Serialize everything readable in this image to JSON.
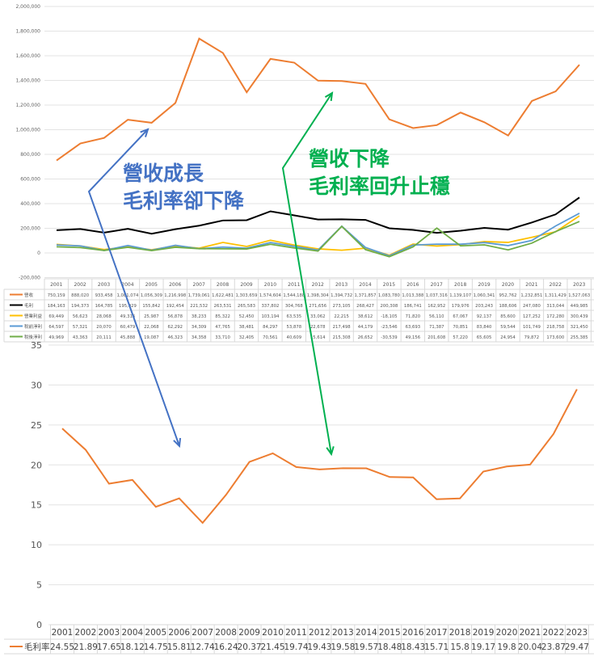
{
  "chart_data": [
    {
      "type": "line",
      "categories": [
        "2001",
        "2002",
        "2003",
        "2004",
        "2005",
        "2006",
        "2007",
        "2008",
        "2009",
        "2010",
        "2011",
        "2012",
        "2013",
        "2014",
        "2015",
        "2016",
        "2017",
        "2018",
        "2019",
        "2020",
        "2021",
        "2022",
        "2023"
      ],
      "ylim": [
        -200000,
        2000000
      ],
      "yticks": [
        "-200,000",
        "0",
        "200,000",
        "400,000",
        "600,000",
        "800,000",
        "1,000,000",
        "1,200,000",
        "1,400,000",
        "1,600,000",
        "1,800,000",
        "2,000,000"
      ],
      "grid": true,
      "legend": "data-table",
      "series": [
        {
          "name": "營收",
          "color": "#ED7D31",
          "values": [
            750159,
            888020,
            933458,
            1081074,
            1056309,
            1216998,
            1739061,
            1622481,
            1303659,
            1574604,
            1544188,
            1398304,
            1394732,
            1371857,
            1083780,
            1013388,
            1037316,
            1139107,
            1060341,
            952762,
            1232851,
            1311429,
            1527063
          ]
        },
        {
          "name": "毛利",
          "color": "#000000",
          "values": [
            184163,
            194373,
            164785,
            195929,
            155842,
            192454,
            221532,
            263531,
            265583,
            337802,
            304768,
            271656,
            273105,
            268427,
            200308,
            186741,
            162952,
            179976,
            203243,
            188606,
            247080,
            313044,
            449985
          ]
        },
        {
          "name": "營業利益",
          "color": "#FFC000",
          "values": [
            69449,
            56623,
            28068,
            49316,
            25987,
            56878,
            38233,
            85322,
            52450,
            103194,
            63535,
            33062,
            22215,
            38612,
            -18105,
            71820,
            56110,
            67067,
            92137,
            85600,
            127252,
            172280,
            300439
          ]
        },
        {
          "name": "稅前淨利",
          "color": "#5B9BD5",
          "values": [
            64597,
            57321,
            20070,
            60479,
            22068,
            62292,
            34309,
            47765,
            38481,
            84297,
            53878,
            22678,
            217498,
            44179,
            -23546,
            63693,
            71387,
            70851,
            83840,
            59544,
            101749,
            218758,
            321450
          ]
        },
        {
          "name": "稅後淨利",
          "color": "#70AD47",
          "values": [
            49969,
            43363,
            20111,
            45888,
            19087,
            46323,
            34358,
            33710,
            32405,
            70561,
            40609,
            15614,
            215308,
            26652,
            -30539,
            49156,
            201608,
            57220,
            65605,
            24954,
            79872,
            173600,
            255385
          ]
        }
      ]
    },
    {
      "type": "line",
      "categories": [
        "2001",
        "2002",
        "2003",
        "2004",
        "2005",
        "2006",
        "2007",
        "2008",
        "2009",
        "2010",
        "2011",
        "2012",
        "2013",
        "2014",
        "2015",
        "2016",
        "2017",
        "2018",
        "2019",
        "2020",
        "2021",
        "2022",
        "2023"
      ],
      "ylim": [
        0,
        35
      ],
      "yticks": [
        "0",
        "5",
        "10",
        "15",
        "20",
        "25",
        "30",
        "35"
      ],
      "grid": true,
      "legend": "data-table",
      "series": [
        {
          "name": "毛利率",
          "color": "#ED7D31",
          "values": [
            "24.55",
            "21.89",
            "17.65",
            "18.12",
            "14.75",
            "15.81",
            "12.74",
            "16.24",
            "20.37",
            "21.45",
            "19.74",
            "19.43",
            "19.58",
            "19.57",
            "18.48",
            "18.43",
            "15.71",
            "15.8",
            "19.17",
            "19.8",
            "20.04",
            "23.87",
            "29.47"
          ]
        }
      ]
    }
  ],
  "annotations": {
    "blue": {
      "text": "營收成長\n毛利率卻下降",
      "color": "#4472C4"
    },
    "green": {
      "text": "營收下降\n毛利率回升止穩",
      "color": "#00B050"
    }
  }
}
